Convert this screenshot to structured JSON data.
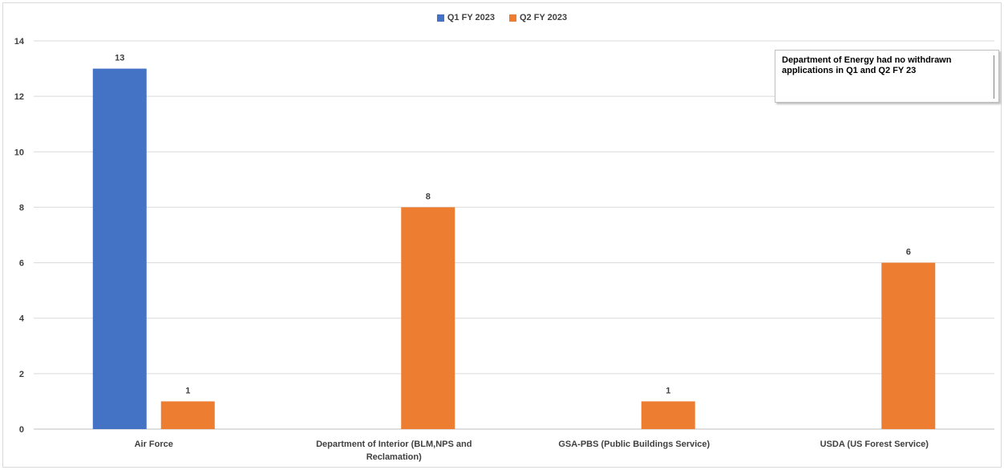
{
  "chart_data": {
    "type": "bar",
    "title": "",
    "xlabel": "",
    "ylabel": "",
    "categories": [
      "Air Force",
      "Department of Interior (BLM,NPS and Reclamation)",
      "GSA-PBS (Public Buildings Service)",
      "USDA (US Forest Service)"
    ],
    "series": [
      {
        "name": "Q1 FY 2023",
        "color": "#4472C4",
        "values": [
          13,
          null,
          null,
          null
        ]
      },
      {
        "name": "Q2 FY 2023",
        "color": "#ED7D31",
        "values": [
          1,
          8,
          1,
          6
        ]
      }
    ],
    "ylim": [
      0,
      14
    ],
    "yticks": [
      0,
      2,
      4,
      6,
      8,
      10,
      12,
      14
    ],
    "grid": true,
    "legend_position": "top",
    "annotation": "Department of Energy had no withdrawn applications in Q1 and Q2 FY 23"
  }
}
